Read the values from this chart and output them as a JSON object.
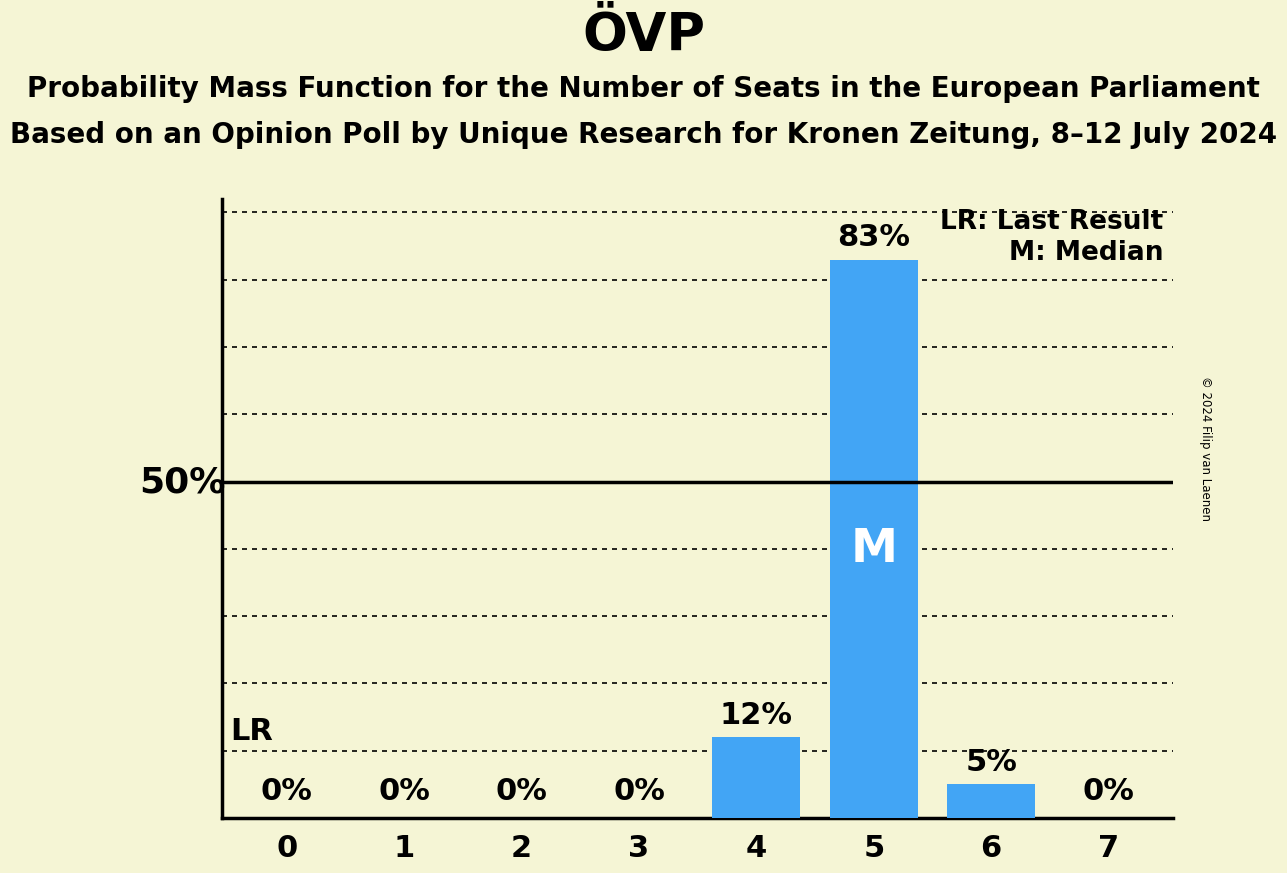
{
  "title": "ÖVP",
  "subtitle_line1": "Probability Mass Function for the Number of Seats in the European Parliament",
  "subtitle_line2": "Based on an Opinion Poll by Unique Research for Kronen Zeitung, 8–12 July 2024",
  "copyright": "© 2024 Filip van Laenen",
  "categories": [
    0,
    1,
    2,
    3,
    4,
    5,
    6,
    7
  ],
  "values": [
    0,
    0,
    0,
    0,
    12,
    83,
    5,
    0
  ],
  "bar_color": "#42a5f5",
  "background_color": "#f5f5d5",
  "median_seat": 5,
  "last_result_pct": 10,
  "fifty_pct_value": 50,
  "ylim": [
    0,
    92
  ],
  "yticks_dotted": [
    10,
    20,
    30,
    40,
    60,
    70,
    80,
    90
  ],
  "legend_lr": "LR: Last Result",
  "legend_m": "M: Median",
  "bar_label_fontsize": 22,
  "title_fontsize": 38,
  "subtitle_fontsize": 20,
  "axis_tick_fontsize": 22,
  "ylabel_fontsize": 26,
  "legend_fontsize": 19,
  "median_label_color": "#ffffff",
  "lr_label_color": "#000000",
  "spine_linewidth": 2.5
}
